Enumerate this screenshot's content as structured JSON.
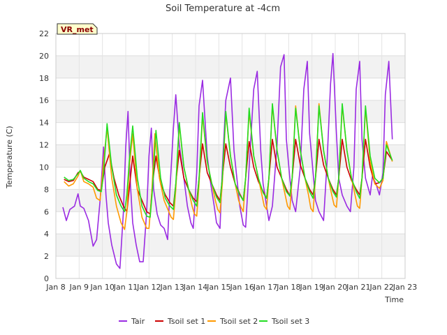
{
  "chart_data": {
    "type": "line",
    "title": "Soil Temperature at -4cm",
    "xlabel": "Time",
    "ylabel": "Temperature (C)",
    "badge": "VR_met",
    "xlim": [
      8,
      23
    ],
    "ylim": [
      0,
      22
    ],
    "x_ticks": [
      8,
      9,
      10,
      11,
      12,
      13,
      14,
      15,
      16,
      17,
      18,
      19,
      20,
      21,
      22,
      23
    ],
    "x_tick_labels": [
      "Jan 8",
      "Jan 9",
      "Jan 10",
      "Jan 11",
      "Jan 12",
      "Jan 13",
      "Jan 14",
      "Jan 15",
      "Jan 16",
      "Jan 17",
      "Jan 18",
      "Jan 19",
      "Jan 20",
      "Jan 21",
      "Jan 22",
      "Jan 23"
    ],
    "y_ticks": [
      0,
      2,
      4,
      6,
      8,
      10,
      12,
      14,
      16,
      18,
      20,
      22
    ],
    "grid": true,
    "legend_position": "bottom",
    "series": [
      {
        "name": "Tair",
        "color": "#9a2be2",
        "x": [
          8.3,
          8.45,
          8.6,
          8.8,
          8.95,
          9.05,
          9.2,
          9.4,
          9.6,
          9.75,
          9.9,
          10.05,
          10.15,
          10.25,
          10.4,
          10.6,
          10.75,
          10.9,
          11.0,
          11.1,
          11.2,
          11.3,
          11.45,
          11.6,
          11.75,
          11.9,
          12.0,
          12.1,
          12.2,
          12.35,
          12.5,
          12.65,
          12.8,
          12.9,
          13.05,
          13.15,
          13.3,
          13.5,
          13.65,
          13.8,
          13.9,
          14.05,
          14.15,
          14.3,
          14.5,
          14.65,
          14.8,
          14.9,
          15.05,
          15.15,
          15.3,
          15.5,
          15.65,
          15.8,
          15.9,
          16.05,
          16.15,
          16.3,
          16.5,
          16.65,
          16.8,
          16.9,
          17.05,
          17.15,
          17.3,
          17.5,
          17.65,
          17.8,
          17.9,
          18.05,
          18.15,
          18.3,
          18.5,
          18.65,
          18.8,
          18.9,
          19.05,
          19.15,
          19.3,
          19.5,
          19.65,
          19.8,
          19.9,
          20.05,
          20.15,
          20.3,
          20.5,
          20.65,
          20.8,
          20.9,
          21.05,
          21.15,
          21.3,
          21.5,
          21.6,
          21.75,
          21.9,
          22.05,
          22.15,
          22.3,
          22.45
        ],
        "y": [
          6.4,
          5.2,
          6.2,
          6.5,
          7.6,
          6.5,
          6.3,
          5.2,
          2.9,
          3.5,
          7.0,
          11.8,
          7.5,
          5.0,
          3.0,
          1.3,
          0.9,
          6.0,
          11.8,
          15.0,
          8.5,
          5.0,
          3.0,
          1.5,
          1.5,
          6.0,
          11.0,
          13.5,
          8.0,
          5.8,
          4.8,
          4.5,
          3.5,
          8.0,
          13.5,
          16.5,
          12.0,
          9.0,
          6.5,
          5.0,
          4.5,
          9.5,
          15.5,
          17.8,
          11.0,
          8.5,
          6.5,
          5.0,
          4.5,
          9.8,
          16.0,
          18.0,
          11.5,
          8.5,
          6.5,
          4.8,
          4.6,
          10.0,
          17.0,
          18.6,
          11.5,
          8.5,
          6.5,
          5.2,
          6.5,
          12.0,
          19.0,
          20.1,
          12.5,
          9.0,
          7.0,
          6.0,
          10.0,
          17.0,
          19.5,
          13.0,
          9.5,
          7.0,
          6.0,
          5.2,
          10.5,
          17.5,
          20.2,
          13.0,
          9.0,
          7.5,
          6.5,
          6.0,
          10.0,
          17.0,
          19.5,
          12.5,
          9.0,
          7.5,
          9.2,
          8.5,
          7.5,
          9.5,
          16.5,
          19.5,
          12.5
        ]
      },
      {
        "name": "Tsoil set 1",
        "color": "#cc0000",
        "x": [
          8.35,
          8.55,
          8.75,
          8.95,
          9.05,
          9.2,
          9.4,
          9.6,
          9.8,
          9.95,
          10.1,
          10.3,
          10.5,
          10.7,
          10.9,
          11.05,
          11.15,
          11.3,
          11.5,
          11.7,
          11.9,
          12.05,
          12.15,
          12.3,
          12.5,
          12.7,
          12.9,
          13.05,
          13.15,
          13.3,
          13.5,
          13.7,
          13.9,
          14.05,
          14.15,
          14.3,
          14.5,
          14.7,
          14.9,
          15.05,
          15.15,
          15.3,
          15.5,
          15.7,
          15.9,
          16.05,
          16.15,
          16.3,
          16.5,
          16.7,
          16.9,
          17.05,
          17.15,
          17.3,
          17.5,
          17.7,
          17.9,
          18.05,
          18.15,
          18.3,
          18.5,
          18.7,
          18.9,
          19.05,
          19.15,
          19.3,
          19.5,
          19.7,
          19.9,
          20.05,
          20.15,
          20.3,
          20.5,
          20.7,
          20.9,
          21.05,
          21.15,
          21.3,
          21.5,
          21.7,
          21.9,
          22.05,
          22.2,
          22.45
        ],
        "y": [
          8.9,
          8.7,
          8.8,
          9.5,
          9.6,
          9.1,
          8.9,
          8.7,
          8.0,
          7.9,
          10.0,
          11.2,
          9.0,
          7.5,
          6.5,
          6.0,
          8.0,
          11.0,
          8.0,
          7.0,
          6.0,
          5.8,
          8.5,
          11.0,
          8.5,
          7.5,
          6.8,
          6.5,
          8.5,
          11.5,
          9.0,
          8.0,
          7.2,
          6.9,
          9.0,
          12.1,
          9.5,
          8.5,
          7.5,
          7.0,
          9.0,
          12.1,
          10.0,
          8.5,
          7.6,
          7.0,
          9.0,
          12.3,
          10.0,
          8.7,
          7.8,
          7.2,
          9.0,
          12.5,
          10.0,
          9.0,
          8.0,
          7.4,
          9.0,
          12.5,
          10.2,
          9.0,
          8.0,
          7.5,
          9.0,
          12.5,
          10.2,
          9.0,
          8.0,
          7.5,
          9.0,
          12.5,
          10.0,
          8.8,
          8.0,
          7.5,
          9.0,
          12.5,
          10.0,
          8.5,
          8.6,
          9.0,
          11.4,
          10.6
        ]
      },
      {
        "name": "Tsoil set 2",
        "color": "#ff9900",
        "x": [
          8.35,
          8.55,
          8.75,
          8.95,
          9.05,
          9.2,
          9.4,
          9.6,
          9.75,
          9.9,
          10.05,
          10.2,
          10.4,
          10.6,
          10.8,
          10.95,
          11.05,
          11.15,
          11.3,
          11.5,
          11.7,
          11.9,
          12.0,
          12.1,
          12.25,
          12.45,
          12.65,
          12.85,
          12.95,
          13.05,
          13.15,
          13.3,
          13.5,
          13.7,
          13.85,
          13.95,
          14.05,
          14.15,
          14.3,
          14.5,
          14.7,
          14.85,
          14.95,
          15.05,
          15.15,
          15.3,
          15.5,
          15.7,
          15.85,
          15.95,
          16.05,
          16.15,
          16.3,
          16.5,
          16.7,
          16.85,
          16.95,
          17.05,
          17.15,
          17.3,
          17.5,
          17.7,
          17.85,
          17.95,
          18.05,
          18.15,
          18.3,
          18.5,
          18.7,
          18.85,
          18.95,
          19.05,
          19.15,
          19.3,
          19.5,
          19.7,
          19.85,
          19.95,
          20.05,
          20.15,
          20.3,
          20.5,
          20.7,
          20.85,
          20.95,
          21.05,
          21.15,
          21.3,
          21.5,
          21.7,
          21.9,
          22.05,
          22.2,
          22.45
        ],
        "y": [
          8.7,
          8.3,
          8.5,
          9.2,
          9.7,
          8.7,
          8.5,
          8.2,
          7.2,
          7.0,
          10.5,
          13.5,
          9.0,
          6.5,
          5.0,
          4.4,
          6.0,
          10.0,
          13.0,
          8.0,
          5.5,
          4.5,
          4.5,
          7.0,
          13.0,
          9.0,
          7.0,
          6.0,
          5.5,
          5.3,
          8.0,
          13.8,
          10.0,
          8.0,
          6.5,
          5.8,
          5.6,
          8.5,
          14.6,
          10.5,
          8.5,
          7.0,
          6.2,
          5.9,
          8.5,
          14.8,
          11.0,
          8.5,
          7.0,
          6.4,
          6.0,
          9.0,
          15.0,
          11.0,
          9.0,
          7.5,
          6.5,
          6.2,
          9.0,
          15.5,
          11.5,
          9.0,
          7.5,
          6.5,
          6.2,
          9.0,
          15.5,
          11.5,
          9.0,
          7.5,
          6.3,
          6.0,
          9.0,
          15.7,
          11.5,
          9.0,
          7.5,
          6.6,
          6.4,
          9.0,
          15.5,
          11.5,
          9.0,
          7.5,
          6.5,
          6.3,
          9.0,
          15.3,
          10.5,
          8.5,
          8.1,
          8.8,
          12.3,
          10.5
        ]
      },
      {
        "name": "Tsoil set 3",
        "color": "#22dd22",
        "x": [
          8.35,
          8.55,
          8.75,
          8.95,
          9.05,
          9.2,
          9.4,
          9.6,
          9.8,
          9.95,
          10.05,
          10.2,
          10.4,
          10.6,
          10.8,
          10.95,
          11.05,
          11.15,
          11.3,
          11.5,
          11.7,
          11.9,
          12.05,
          12.15,
          12.3,
          12.5,
          12.7,
          12.9,
          13.05,
          13.15,
          13.3,
          13.5,
          13.7,
          13.9,
          14.05,
          14.15,
          14.3,
          14.5,
          14.7,
          14.9,
          15.05,
          15.15,
          15.3,
          15.5,
          15.7,
          15.9,
          16.05,
          16.15,
          16.3,
          16.5,
          16.7,
          16.9,
          17.05,
          17.15,
          17.3,
          17.5,
          17.7,
          17.9,
          18.05,
          18.15,
          18.3,
          18.5,
          18.7,
          18.9,
          19.05,
          19.15,
          19.3,
          19.5,
          19.7,
          19.9,
          20.05,
          20.15,
          20.3,
          20.5,
          20.7,
          20.9,
          21.05,
          21.15,
          21.3,
          21.5,
          21.7,
          21.9,
          22.05,
          22.2,
          22.45
        ],
        "y": [
          9.1,
          8.8,
          8.9,
          9.4,
          9.7,
          9.0,
          8.7,
          8.5,
          7.9,
          7.8,
          9.5,
          13.9,
          10.0,
          7.5,
          6.5,
          6.0,
          7.5,
          10.5,
          13.7,
          9.0,
          6.5,
          5.6,
          5.5,
          8.0,
          13.3,
          9.0,
          7.2,
          6.5,
          6.2,
          8.5,
          14.0,
          10.0,
          8.0,
          7.0,
          6.5,
          9.0,
          14.9,
          10.5,
          8.5,
          7.3,
          6.8,
          9.0,
          15.0,
          11.0,
          8.5,
          7.5,
          7.0,
          9.0,
          15.3,
          11.0,
          9.0,
          7.7,
          7.2,
          9.0,
          15.7,
          11.5,
          9.0,
          7.8,
          7.4,
          9.0,
          15.3,
          11.5,
          9.0,
          7.8,
          7.2,
          9.0,
          15.5,
          11.5,
          9.0,
          7.8,
          7.3,
          9.0,
          15.7,
          11.5,
          9.0,
          7.8,
          7.2,
          9.0,
          15.5,
          11.0,
          9.0,
          8.6,
          9.0,
          12.0,
          10.6
        ]
      }
    ]
  }
}
